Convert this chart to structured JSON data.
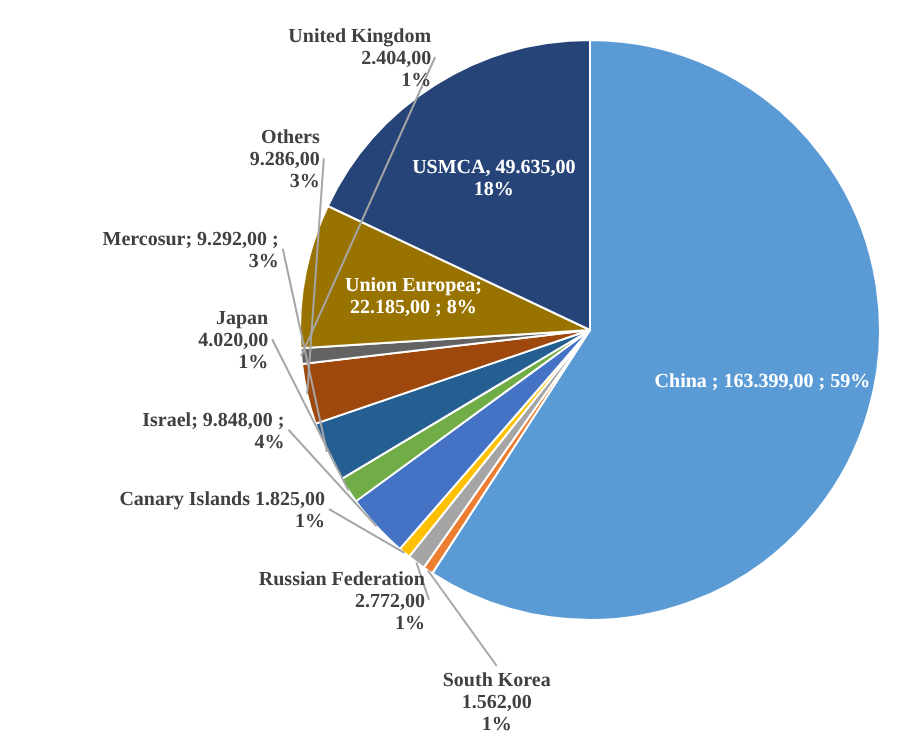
{
  "chart_data": {
    "type": "pie",
    "categories": [
      "China",
      "South Korea",
      "Russian Federation",
      "Canary Islands",
      "Israel",
      "Japan",
      "Mercosur",
      "Others",
      "United Kingdom",
      "Union Europea",
      "USMCA"
    ],
    "values": [
      163399,
      1562,
      2772,
      1825,
      9848,
      4020,
      9292,
      9286,
      2404,
      22185,
      49635
    ],
    "colors": [
      "#5b9bd5",
      "#ed7d31",
      "#a5a5a5",
      "#ffc000",
      "#4472c4",
      "#70ad47",
      "#255e91",
      "#9e480e",
      "#636363",
      "#997300",
      "#264478"
    ],
    "value_labels": [
      " ;  163.399,00 ; 59%",
      "\n1.562,00\n1%",
      "\n2.772,00\n1%",
      " 1.825,00\n1%",
      "; 9.848,00 ;\n4%",
      "\n4.020,00\n1%",
      "; 9.292,00 ;\n3%",
      "\n9.286,00\n3%",
      "\n2.404,00\n1%",
      ";\n22.185,00 ; 8%",
      ",  49.635,00\n18%"
    ],
    "data_labels": true
  }
}
